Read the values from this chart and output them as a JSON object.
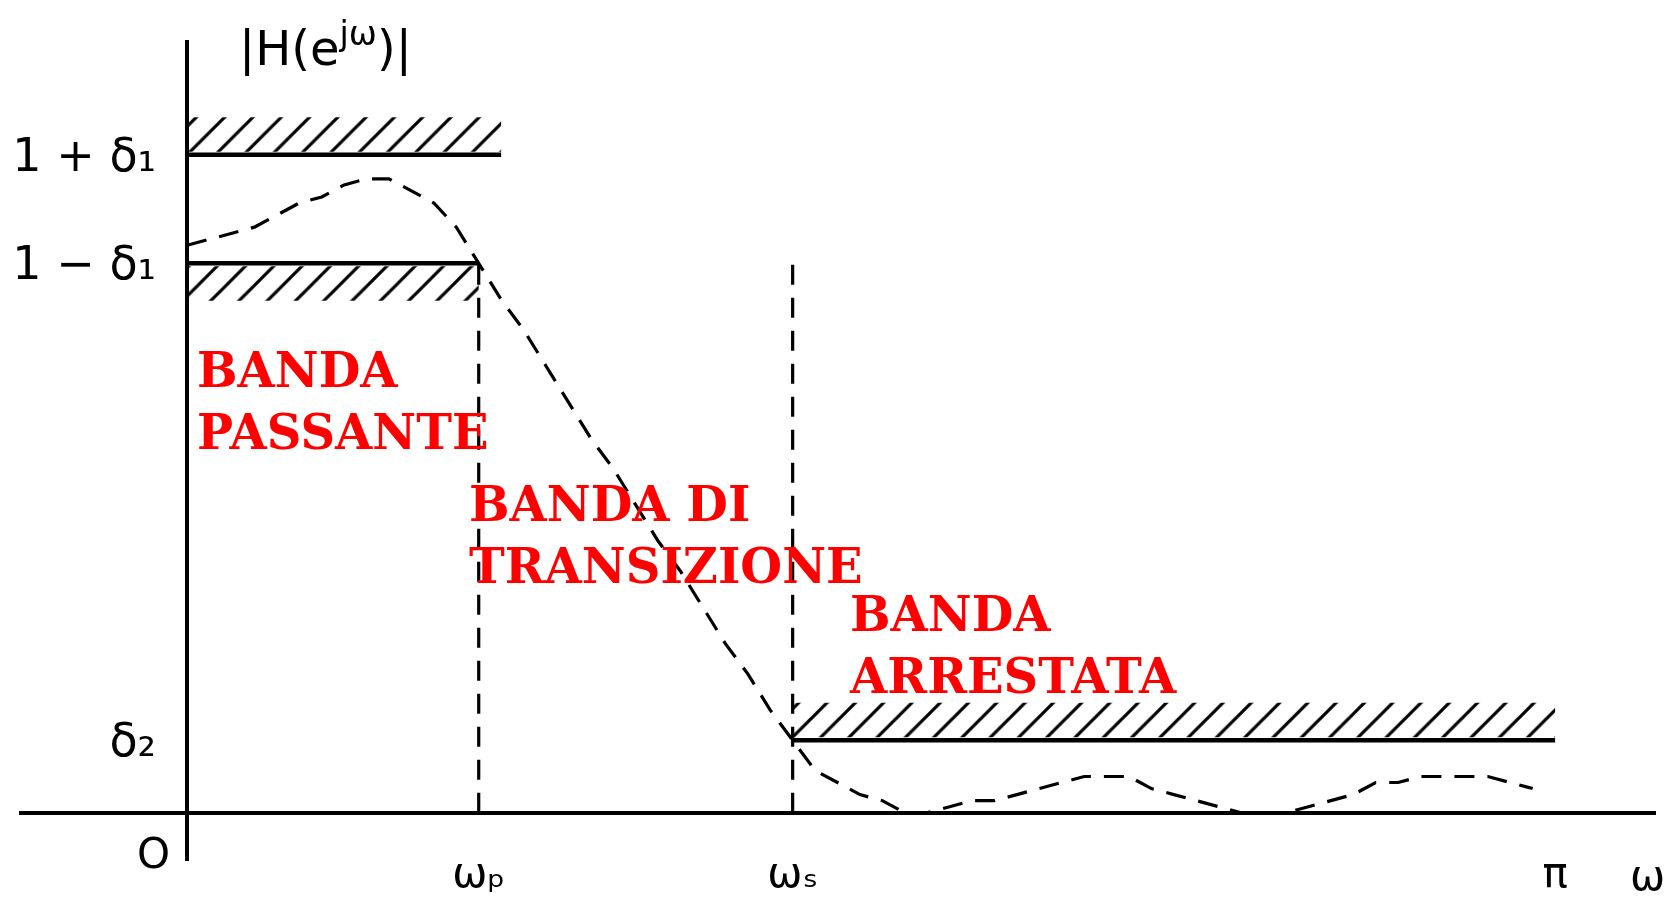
{
  "chart_data": {
    "type": "line",
    "xlabel": "ω",
    "ylabel": "|H(e$^{jω}$)|",
    "categories": [
      null,
      null,
      null,
      null,
      null,
      null,
      null,
      null,
      null,
      null,
      null,
      null,
      null,
      null,
      null,
      null,
      null,
      null,
      null,
      null,
      "ωₚ",
      null,
      null,
      null,
      null,
      null,
      null,
      null,
      null,
      null,
      null,
      null,
      null,
      null,
      "ωₛ",
      null,
      null,
      null,
      null,
      null,
      null,
      null,
      null,
      null,
      null,
      null,
      null,
      null,
      null,
      null,
      null,
      null,
      null,
      null,
      null,
      null,
      null,
      null,
      null,
      null,
      null,
      null,
      null,
      null,
      null,
      null,
      null,
      null,
      "π",
      null,
      null,
      null,
      null
    ],
    "ylim": [
      -0.08,
      1.28
    ],
    "yticks": [
      {
        "value": 0.12,
        "label": "δ₂"
      },
      {
        "value": 0.91,
        "label": "1 − δ₁"
      },
      {
        "value": 1.09,
        "label": "1 + δ₁"
      }
    ],
    "series": [
      {
        "color": "#000000",
        "line_style": "dashed",
        "values": [
          null,
          null,
          null,
          null,
          null,
          null,
          null,
          0.94,
          0.95,
          0.96,
          0.97,
          0.99,
          1.01,
          1.02,
          1.04,
          1.05,
          1.05,
          1.03,
          1.01,
          0.97,
          0.91,
          0.85,
          0.8,
          0.74,
          0.68,
          0.62,
          0.57,
          0.51,
          0.45,
          0.4,
          0.34,
          0.28,
          0.23,
          0.17,
          0.12,
          0.07,
          0.05,
          0.03,
          0.02,
          0.0,
          0.0,
          0.01,
          0.02,
          0.02,
          0.03,
          0.04,
          0.05,
          0.06,
          0.06,
          0.06,
          0.04,
          0.03,
          0.02,
          0.01,
          0.0,
          0.0,
          0.0,
          0.01,
          0.02,
          0.03,
          0.05,
          0.05,
          0.06,
          0.06,
          0.06,
          0.06,
          0.05,
          0.04,
          null,
          null,
          null,
          null,
          null
        ]
      },
      {
        "color": "#000000",
        "line_style": "solid",
        "values": [
          null,
          null,
          null,
          null,
          null,
          null,
          null,
          1.09,
          1.09,
          1.09,
          1.09,
          1.09,
          1.09,
          1.09,
          1.09,
          1.09,
          1.09,
          1.09,
          1.09,
          1.09,
          1.09,
          1.09,
          null,
          null,
          null,
          null,
          null,
          null,
          null,
          null,
          null,
          null,
          null,
          null,
          null,
          null,
          null,
          null,
          null,
          null,
          null,
          null,
          null,
          null,
          null,
          null,
          null,
          null,
          null,
          null,
          null,
          null,
          null,
          null,
          null,
          null,
          null,
          null,
          null,
          null,
          null,
          null,
          null,
          null,
          null,
          null,
          null,
          null,
          null,
          null,
          null,
          null,
          null
        ]
      },
      {
        "color": "#000000",
        "line_style": "solid",
        "values": [
          null,
          null,
          null,
          null,
          null,
          null,
          null,
          0.91,
          0.91,
          0.91,
          0.91,
          0.91,
          0.91,
          0.91,
          0.91,
          0.91,
          0.91,
          0.91,
          0.91,
          0.91,
          0.91,
          null,
          null,
          null,
          null,
          null,
          null,
          null,
          null,
          null,
          null,
          null,
          null,
          null,
          null,
          null,
          null,
          null,
          null,
          null,
          null,
          null,
          null,
          null,
          null,
          null,
          null,
          null,
          null,
          null,
          null,
          null,
          null,
          null,
          null,
          null,
          null,
          null,
          null,
          null,
          null,
          null,
          null,
          null,
          null,
          null,
          null,
          null,
          null,
          null,
          null,
          null,
          null
        ]
      },
      {
        "color": "#000000",
        "line_style": "solid",
        "values": [
          null,
          null,
          null,
          null,
          null,
          null,
          null,
          null,
          null,
          null,
          null,
          null,
          null,
          null,
          null,
          null,
          null,
          null,
          null,
          null,
          null,
          null,
          null,
          null,
          null,
          null,
          null,
          null,
          null,
          null,
          null,
          null,
          null,
          null,
          0.12,
          0.12,
          0.12,
          0.12,
          0.12,
          0.12,
          0.12,
          0.12,
          0.12,
          0.12,
          0.12,
          0.12,
          0.12,
          0.12,
          0.12,
          0.12,
          0.12,
          0.12,
          0.12,
          0.12,
          0.12,
          0.12,
          0.12,
          0.12,
          0.12,
          0.12,
          0.12,
          0.12,
          0.12,
          0.12,
          0.12,
          0.12,
          0.12,
          0.12,
          0.12,
          null,
          null,
          null,
          null
        ]
      },
      {
        "color": "#000000",
        "line_style": "dashed",
        "x": [
          "ωₚ",
          "ωₚ"
        ],
        "values": [
          0,
          0.91
        ]
      },
      {
        "color": "#000000",
        "line_style": "dashed",
        "x": [
          "ωₛ",
          "ωₛ"
        ],
        "values": [
          0,
          0.91
        ]
      }
    ],
    "annotations": [
      "BANDA\nPASSANTE",
      "BANDA DI\nTRANSIZIONE",
      "BANDA\nARRESTATA",
      "O"
    ],
    "grid": false,
    "marker": "none"
  }
}
